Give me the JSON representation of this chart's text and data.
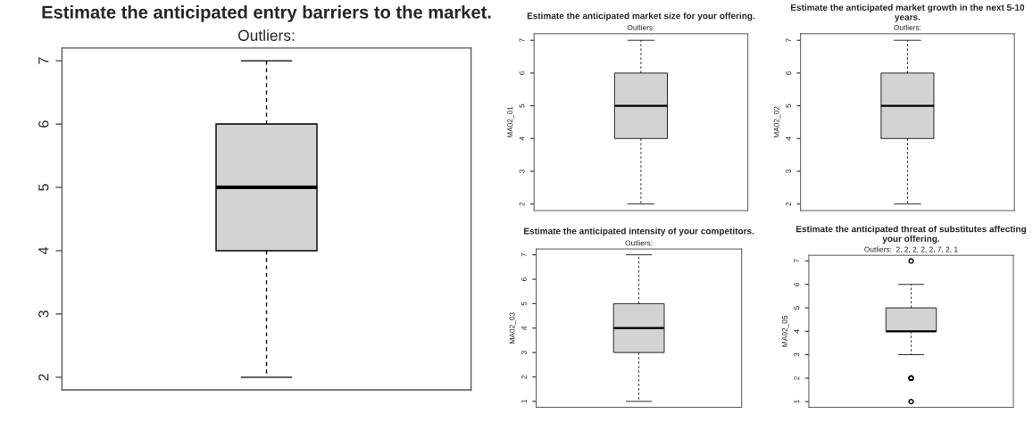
{
  "chart_data": [
    {
      "type": "box",
      "title": "Estimate the anticipated entry barriers to the market.",
      "subtitle": "Outliers:",
      "categories": [
        null
      ],
      "boxes": [
        {
          "low": 2,
          "q1": 4,
          "median": 5,
          "q3": 6,
          "high": 7
        }
      ],
      "ylim": [
        1.8,
        7.2
      ],
      "yticks": [
        2,
        3,
        4,
        5,
        6,
        7
      ],
      "tick_labels": "y",
      "color": "#d3d3d3"
    },
    {
      "type": "box",
      "title": "Estimate the anticipated market size for your offering.",
      "subtitle": "Outliers:",
      "ylabel": "MA02_01",
      "categories": [
        null
      ],
      "boxes": [
        {
          "low": 2,
          "q1": 4,
          "median": 5,
          "q3": 6,
          "high": 7
        }
      ],
      "ylim": [
        1.8,
        7.2
      ],
      "yticks": [
        2,
        3,
        4,
        5,
        6,
        7
      ],
      "tick_labels": "y",
      "color": "#d3d3d3"
    },
    {
      "type": "box",
      "title": "Estimate the anticipated market growth in the next 5-10 years.",
      "subtitle": "Outliers:",
      "ylabel": "MA02_02",
      "categories": [
        null
      ],
      "boxes": [
        {
          "low": 2,
          "q1": 4,
          "median": 5,
          "q3": 6,
          "high": 7
        }
      ],
      "ylim": [
        1.8,
        7.2
      ],
      "yticks": [
        2,
        3,
        4,
        5,
        6,
        7
      ],
      "tick_labels": "y",
      "color": "#d3d3d3"
    },
    {
      "type": "box",
      "title": "Estimate the anticipated intensity of your competitors.",
      "subtitle": "Outliers:",
      "ylabel": "MA02_03",
      "categories": [
        null
      ],
      "boxes": [
        {
          "low": 1,
          "q1": 3,
          "median": 4,
          "q3": 5,
          "high": 7
        }
      ],
      "ylim": [
        0.76,
        7.24
      ],
      "yticks": [
        1,
        2,
        3,
        4,
        5,
        6,
        7
      ],
      "tick_labels": "y",
      "color": "#d3d3d3"
    },
    {
      "type": "box",
      "title": "Estimate the anticipated threat of substitutes affecting your offering.",
      "subtitle": "Outliers:  2, 2, 2, 2, 2, 7, 2, 1",
      "ylabel": "MA02_05",
      "categories": [
        null
      ],
      "boxes": [
        {
          "low": 3,
          "q1": 4,
          "median": 4,
          "q3": 5,
          "high": 6,
          "outliers": [
            2,
            2,
            2,
            2,
            2,
            7,
            2,
            1
          ]
        }
      ],
      "ylim": [
        0.76,
        7.24
      ],
      "yticks": [
        1,
        2,
        3,
        4,
        5,
        6,
        7
      ],
      "tick_labels": "y",
      "color": "#d3d3d3"
    }
  ]
}
